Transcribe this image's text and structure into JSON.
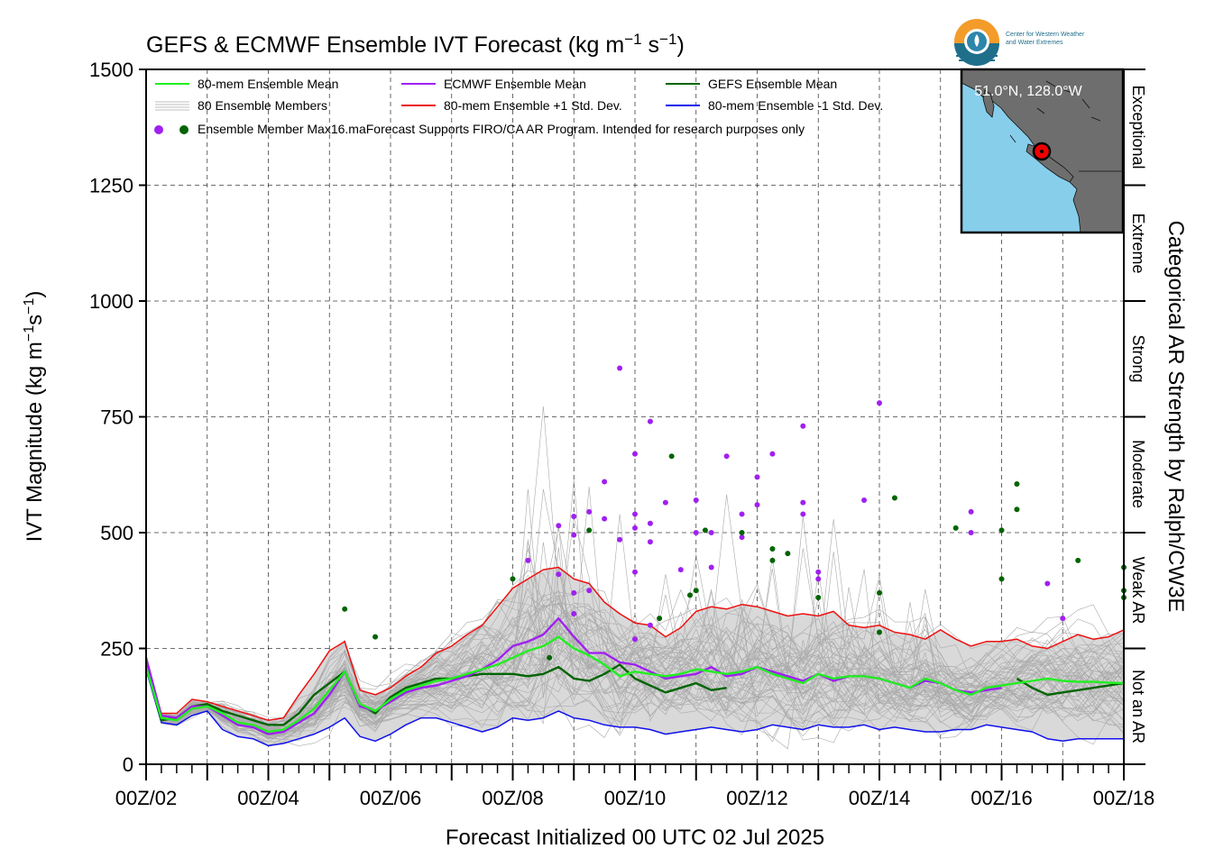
{
  "chart_data": {
    "type": "line",
    "title": "GEFS & ECMWF Ensemble IVT Forecast (kg m",
    "title_sup1": "−1",
    "title_mid": " s",
    "title_sup2": "−1",
    "title_end": ")",
    "ylabel": "IVT Magnitude (kg m",
    "ylabel_sup1": "−1",
    "ylabel_mid": "s",
    "ylabel_sup2": "−1",
    "ylabel_end": ")",
    "xlabel": "Forecast Initialized 00 UTC 02 Jul 2025",
    "right_label": "Categorical AR Strength by Ralph/CW3E",
    "ylim": [
      0,
      1500
    ],
    "xlim_days": [
      2,
      18
    ],
    "grid": true,
    "y_ticks": [
      "0",
      "250",
      "500",
      "750",
      "1000",
      "1250",
      "1500"
    ],
    "x_ticks": [
      "00Z/02",
      "00Z/04",
      "00Z/06",
      "00Z/08",
      "00Z/10",
      "00Z/12",
      "00Z/14",
      "00Z/16",
      "00Z/18"
    ],
    "categories": [
      "Not an AR",
      "Weak AR",
      "Moderate",
      "Strong",
      "Extreme",
      "Exceptional"
    ],
    "legend": {
      "placement": "top-left",
      "items": [
        {
          "label": "80-mem Ensemble Mean",
          "color": "#22ee22"
        },
        {
          "label": "ECMWF Ensemble Mean",
          "color": "#a020f0"
        },
        {
          "label": "GEFS Ensemble Mean",
          "color": "#006400"
        },
        {
          "label": "80 Ensemble Members",
          "color": "#aaaaaa"
        },
        {
          "label": "80-mem Ensemble +1 Std. Dev.",
          "color": "#ee1111"
        },
        {
          "label": "80-mem Ensemble -1 Std. Dev.",
          "color": "#1111ee"
        },
        {
          "label": "Ensemble Member Max",
          "color": "#a020f0"
        }
      ],
      "note": "16.maForecast Supports FIRO/CA AR Program. Intended for research purposes only"
    },
    "inset_map": {
      "label": "51.0°N, 128.0°W",
      "ocean_color": "#87ceeb",
      "land_color": "#6e6e6e",
      "marker_color": "#ee0000"
    },
    "logo_text": [
      "Center for Western Weather",
      "and Water Extremes"
    ],
    "x": [
      2.0,
      2.25,
      2.5,
      2.75,
      3.0,
      3.25,
      3.5,
      3.75,
      4.0,
      4.25,
      4.5,
      4.75,
      5.0,
      5.25,
      5.5,
      5.75,
      6.0,
      6.25,
      6.5,
      6.75,
      7.0,
      7.25,
      7.5,
      7.75,
      8.0,
      8.25,
      8.5,
      8.75,
      9.0,
      9.25,
      9.5,
      9.75,
      10.0,
      10.25,
      10.5,
      10.75,
      11.0,
      11.25,
      11.5,
      11.75,
      12.0,
      12.25,
      12.5,
      12.75,
      13.0,
      13.25,
      13.5,
      13.75,
      14.0,
      14.25,
      14.5,
      14.75,
      15.0,
      15.25,
      15.5,
      15.75,
      16.0,
      16.25,
      16.5,
      16.75,
      17.0,
      17.25,
      17.5,
      17.75,
      18.0
    ],
    "series": [
      {
        "name": "80-mem Ensemble Mean",
        "color": "#22ee22",
        "values": [
          210,
          100,
          95,
          120,
          125,
          110,
          90,
          85,
          70,
          75,
          95,
          120,
          160,
          200,
          130,
          115,
          140,
          160,
          170,
          180,
          185,
          195,
          205,
          215,
          230,
          245,
          255,
          275,
          250,
          235,
          215,
          190,
          200,
          195,
          190,
          195,
          205,
          200,
          195,
          200,
          210,
          195,
          185,
          175,
          195,
          185,
          190,
          190,
          185,
          175,
          165,
          185,
          175,
          160,
          150,
          165,
          170,
          175,
          180,
          185,
          180,
          178,
          178,
          176,
          175
        ]
      },
      {
        "name": "ECMWF Ensemble Mean",
        "color": "#a020f0",
        "values": [
          230,
          105,
          100,
          125,
          125,
          105,
          85,
          80,
          65,
          70,
          90,
          110,
          150,
          200,
          125,
          115,
          135,
          155,
          165,
          170,
          180,
          190,
          205,
          225,
          255,
          265,
          280,
          315,
          275,
          240,
          240,
          220,
          215,
          200,
          185,
          190,
          195,
          210,
          190,
          195,
          210,
          200,
          190,
          180,
          195,
          180,
          190,
          190,
          185,
          175,
          165,
          180,
          175,
          160,
          155,
          160,
          165,
          null,
          null,
          null,
          null,
          null,
          null,
          null,
          null
        ]
      },
      {
        "name": "GEFS Ensemble Mean",
        "color": "#006400",
        "values": [
          215,
          95,
          100,
          125,
          130,
          115,
          105,
          95,
          85,
          85,
          110,
          150,
          175,
          200,
          130,
          110,
          145,
          165,
          175,
          185,
          185,
          190,
          195,
          195,
          195,
          190,
          195,
          210,
          185,
          180,
          195,
          215,
          185,
          170,
          155,
          165,
          175,
          160,
          165,
          null,
          null,
          null,
          null,
          null,
          null,
          null,
          null,
          null,
          null,
          null,
          null,
          null,
          null,
          null,
          null,
          null,
          null,
          185,
          165,
          150,
          155,
          160,
          165,
          170,
          175
        ]
      },
      {
        "name": "80-mem Ensemble +1 Std. Dev.",
        "color": "#ee1111",
        "values": [
          220,
          110,
          110,
          140,
          135,
          125,
          115,
          105,
          95,
          100,
          150,
          195,
          245,
          265,
          160,
          150,
          165,
          190,
          210,
          240,
          255,
          280,
          300,
          340,
          380,
          400,
          420,
          425,
          400,
          390,
          350,
          325,
          305,
          300,
          275,
          295,
          330,
          340,
          335,
          345,
          340,
          330,
          320,
          325,
          320,
          330,
          300,
          295,
          300,
          285,
          280,
          270,
          290,
          270,
          255,
          265,
          265,
          270,
          255,
          250,
          265,
          280,
          270,
          275,
          290
        ]
      },
      {
        "name": "80-mem Ensemble -1 Std. Dev.",
        "color": "#1111ee",
        "values": [
          205,
          90,
          85,
          105,
          115,
          75,
          60,
          55,
          40,
          45,
          55,
          65,
          80,
          100,
          60,
          50,
          65,
          85,
          100,
          100,
          90,
          80,
          70,
          80,
          100,
          95,
          100,
          115,
          100,
          95,
          85,
          80,
          80,
          75,
          65,
          70,
          75,
          80,
          75,
          70,
          75,
          85,
          80,
          75,
          85,
          80,
          80,
          85,
          75,
          80,
          75,
          70,
          70,
          75,
          75,
          85,
          80,
          75,
          70,
          55,
          50,
          55,
          55,
          55,
          55
        ]
      }
    ],
    "member_max_ecmwf": [
      {
        "x": 8.25,
        "y": 440
      },
      {
        "x": 8.75,
        "y": 410
      },
      {
        "x": 8.75,
        "y": 515
      },
      {
        "x": 9.0,
        "y": 495
      },
      {
        "x": 9.0,
        "y": 535
      },
      {
        "x": 9.0,
        "y": 370
      },
      {
        "x": 9.0,
        "y": 325
      },
      {
        "x": 9.25,
        "y": 545
      },
      {
        "x": 9.25,
        "y": 375
      },
      {
        "x": 9.5,
        "y": 610
      },
      {
        "x": 9.5,
        "y": 530
      },
      {
        "x": 9.75,
        "y": 855
      },
      {
        "x": 9.75,
        "y": 485
      },
      {
        "x": 10.0,
        "y": 670
      },
      {
        "x": 10.0,
        "y": 540
      },
      {
        "x": 10.0,
        "y": 510
      },
      {
        "x": 10.0,
        "y": 415
      },
      {
        "x": 10.0,
        "y": 270
      },
      {
        "x": 10.25,
        "y": 740
      },
      {
        "x": 10.25,
        "y": 520
      },
      {
        "x": 10.25,
        "y": 480
      },
      {
        "x": 10.25,
        "y": 300
      },
      {
        "x": 10.5,
        "y": 565
      },
      {
        "x": 10.75,
        "y": 420
      },
      {
        "x": 11.0,
        "y": 570
      },
      {
        "x": 11.0,
        "y": 500
      },
      {
        "x": 11.25,
        "y": 500
      },
      {
        "x": 11.25,
        "y": 425
      },
      {
        "x": 11.5,
        "y": 665
      },
      {
        "x": 11.75,
        "y": 540
      },
      {
        "x": 11.75,
        "y": 490
      },
      {
        "x": 12.0,
        "y": 620
      },
      {
        "x": 12.0,
        "y": 560
      },
      {
        "x": 12.25,
        "y": 670
      },
      {
        "x": 12.75,
        "y": 730
      },
      {
        "x": 12.75,
        "y": 565
      },
      {
        "x": 12.75,
        "y": 540
      },
      {
        "x": 13.0,
        "y": 415
      },
      {
        "x": 13.0,
        "y": 400
      },
      {
        "x": 13.75,
        "y": 570
      },
      {
        "x": 14.0,
        "y": 780
      },
      {
        "x": 15.5,
        "y": 545
      },
      {
        "x": 15.5,
        "y": 500
      },
      {
        "x": 16.75,
        "y": 390
      },
      {
        "x": 17.0,
        "y": 315
      }
    ],
    "member_max_gefs": [
      {
        "x": 5.25,
        "y": 335
      },
      {
        "x": 5.75,
        "y": 275
      },
      {
        "x": 8.0,
        "y": 400
      },
      {
        "x": 8.6,
        "y": 230
      },
      {
        "x": 9.25,
        "y": 505
      },
      {
        "x": 10.4,
        "y": 315
      },
      {
        "x": 10.6,
        "y": 665
      },
      {
        "x": 10.9,
        "y": 365
      },
      {
        "x": 11.0,
        "y": 375
      },
      {
        "x": 11.15,
        "y": 505
      },
      {
        "x": 11.75,
        "y": 500
      },
      {
        "x": 12.25,
        "y": 465
      },
      {
        "x": 12.25,
        "y": 440
      },
      {
        "x": 12.5,
        "y": 455
      },
      {
        "x": 13.0,
        "y": 360
      },
      {
        "x": 14.0,
        "y": 370
      },
      {
        "x": 14.0,
        "y": 285
      },
      {
        "x": 14.25,
        "y": 575
      },
      {
        "x": 15.25,
        "y": 510
      },
      {
        "x": 16.0,
        "y": 505
      },
      {
        "x": 16.0,
        "y": 400
      },
      {
        "x": 16.25,
        "y": 605
      },
      {
        "x": 16.25,
        "y": 550
      },
      {
        "x": 17.25,
        "y": 440
      },
      {
        "x": 18.0,
        "y": 425
      },
      {
        "x": 18.0,
        "y": 375
      },
      {
        "x": 18.0,
        "y": 360
      }
    ]
  }
}
